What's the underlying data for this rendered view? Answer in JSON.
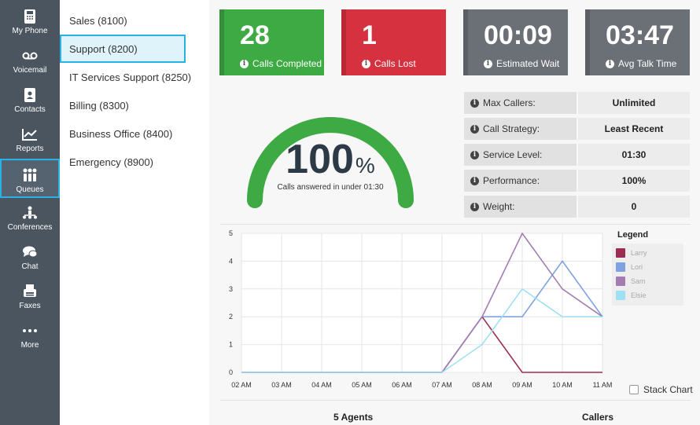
{
  "nav": {
    "items": [
      {
        "label": "My Phone",
        "icon": "phone-icon"
      },
      {
        "label": "Voicemail",
        "icon": "voicemail-icon"
      },
      {
        "label": "Contacts",
        "icon": "contacts-icon"
      },
      {
        "label": "Reports",
        "icon": "reports-icon"
      },
      {
        "label": "Queues",
        "icon": "queues-icon",
        "active": true
      },
      {
        "label": "Conferences",
        "icon": "conferences-icon"
      },
      {
        "label": "Chat",
        "icon": "chat-icon"
      },
      {
        "label": "Faxes",
        "icon": "fax-icon"
      },
      {
        "label": "More",
        "icon": "more-icon"
      }
    ]
  },
  "queues": [
    {
      "label": "Sales (8100)"
    },
    {
      "label": "Support (8200)",
      "active": true
    },
    {
      "label": "IT Services Support (8250)"
    },
    {
      "label": "Billing (8300)"
    },
    {
      "label": "Business Office (8400)"
    },
    {
      "label": "Emergency (8900)"
    }
  ],
  "cards": [
    {
      "value": "28",
      "label": "Calls Completed",
      "color": "#3daa43"
    },
    {
      "value": "1",
      "label": "Calls Lost",
      "color": "#d6313f"
    },
    {
      "value": "00:09",
      "label": "Estimated Wait",
      "color": "#6b6f76"
    },
    {
      "value": "03:47",
      "label": "Avg Talk Time",
      "color": "#6b6f76"
    }
  ],
  "gauge": {
    "value": "100",
    "unit": "%",
    "caption": "Calls answered in under 01:30",
    "fraction": 1.0,
    "color": "#3daa43"
  },
  "stats": [
    {
      "key": "Max Callers:",
      "value": "Unlimited"
    },
    {
      "key": "Call Strategy:",
      "value": "Least Recent"
    },
    {
      "key": "Service Level:",
      "value": "01:30"
    },
    {
      "key": "Performance:",
      "value": "100%"
    },
    {
      "key": "Weight:",
      "value": "0"
    }
  ],
  "chart_data": {
    "type": "line",
    "x": [
      "02 AM",
      "03 AM",
      "04 AM",
      "05 AM",
      "06 AM",
      "07 AM",
      "08 AM",
      "09 AM",
      "10 AM",
      "11 AM"
    ],
    "ylim": [
      0,
      5
    ],
    "yticks": [
      "0",
      "1",
      "2",
      "3",
      "4",
      "5"
    ],
    "grid": true,
    "legend_title": "Legend",
    "legend_placement": "right",
    "series": [
      {
        "name": "Larry",
        "color": "#9b2d52",
        "values": [
          0,
          0,
          0,
          0,
          0,
          0,
          2,
          0,
          0,
          0
        ]
      },
      {
        "name": "Lori",
        "color": "#7ea3e0",
        "values": [
          0,
          0,
          0,
          0,
          0,
          0,
          2,
          2,
          4,
          2
        ]
      },
      {
        "name": "Sam",
        "color": "#a37db2",
        "values": [
          0,
          0,
          0,
          0,
          0,
          0,
          2,
          5,
          3,
          2
        ]
      },
      {
        "name": "Elsie",
        "color": "#9fe0f2",
        "values": [
          0,
          0,
          0,
          0,
          0,
          0,
          1,
          3,
          2,
          2
        ]
      }
    ]
  },
  "stack_chart_label": "Stack Chart",
  "footer": {
    "agents": "5 Agents",
    "callers": "Callers"
  }
}
